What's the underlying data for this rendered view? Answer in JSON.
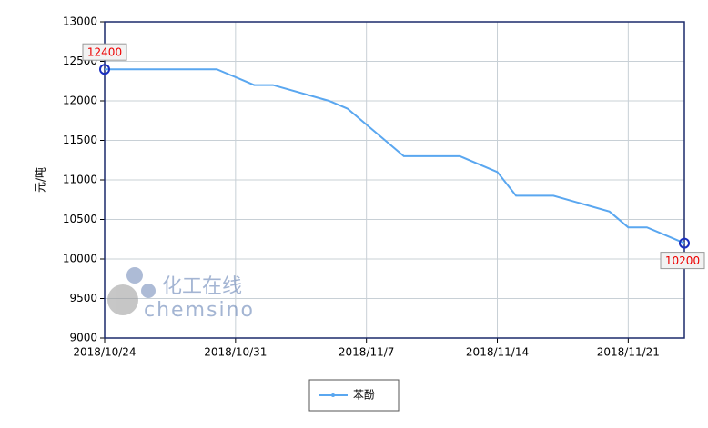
{
  "chart_data": {
    "type": "line",
    "y_label": "元/吨",
    "x": [
      "2018/10/24",
      "2018/10/30",
      "2018/11/1",
      "2018/11/2",
      "2018/11/5",
      "2018/11/6",
      "2018/11/7",
      "2018/11/9",
      "2018/11/12",
      "2018/11/14",
      "2018/11/15",
      "2018/11/17",
      "2018/11/20",
      "2018/11/21",
      "2018/11/22",
      "2018/11/24"
    ],
    "series": [
      {
        "name": "苯酚",
        "color": "#5aa7f0",
        "values": [
          12400,
          12400,
          12200,
          12200,
          12000,
          11900,
          11700,
          11300,
          11300,
          11100,
          10800,
          10800,
          10600,
          10400,
          10400,
          10200
        ]
      }
    ],
    "xlim": [
      "2018/10/24",
      "2018/11/24"
    ],
    "xticks": [
      "2018/10/24",
      "2018/10/31",
      "2018/11/7",
      "2018/11/14",
      "2018/11/21"
    ],
    "ylim": [
      9000,
      13000
    ],
    "yticks": [
      9000,
      9500,
      10000,
      10500,
      11000,
      11500,
      12000,
      12500,
      13000
    ],
    "grid": true,
    "watermark": {
      "cn": "化工在线",
      "en": "chemsino"
    }
  }
}
